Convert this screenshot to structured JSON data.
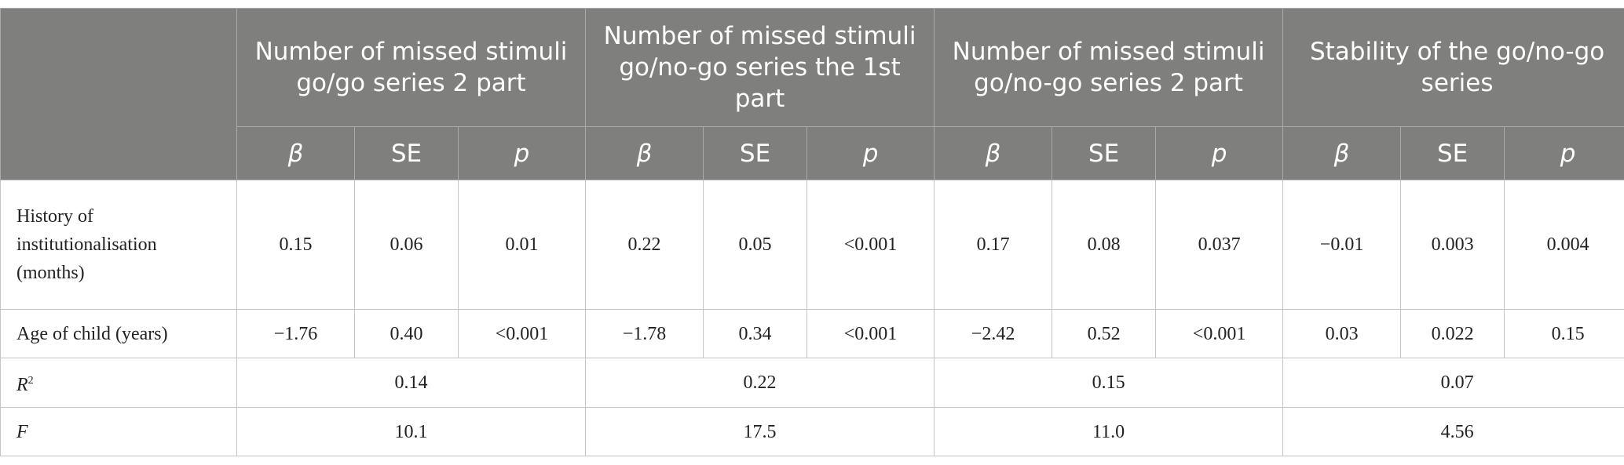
{
  "table": {
    "groups": [
      "Number of missed stimuli go/go series 2 part",
      "Number of missed stimuli go/no-go series the 1st part",
      "Number of missed stimuli go/no-go series 2 part",
      "Stability of the go/no-go series"
    ],
    "subheaders": [
      "β",
      "SE",
      "p",
      "β",
      "SE",
      "p",
      "β",
      "SE",
      "p",
      "β",
      "SE",
      "p"
    ],
    "rows": [
      {
        "label": "History of institutionalisation (months)",
        "cells": [
          "0.15",
          "0.06",
          "0.01",
          "0.22",
          "0.05",
          "<0.001",
          "0.17",
          "0.08",
          "0.037",
          "−0.01",
          "0.003",
          "0.004"
        ]
      },
      {
        "label": "Age of child (years)",
        "cells": [
          "−1.76",
          "0.40",
          "<0.001",
          "−1.78",
          "0.34",
          "<0.001",
          "−2.42",
          "0.52",
          "<0.001",
          "0.03",
          "0.022",
          "0.15"
        ]
      },
      {
        "label": {
          "text": "R",
          "sup": "2"
        },
        "cells": [
          "0.14",
          "0.22",
          "0.15",
          "0.07"
        ]
      },
      {
        "label": "F",
        "cells": [
          "10.1",
          "17.5",
          "11.0",
          "4.56"
        ]
      }
    ]
  }
}
